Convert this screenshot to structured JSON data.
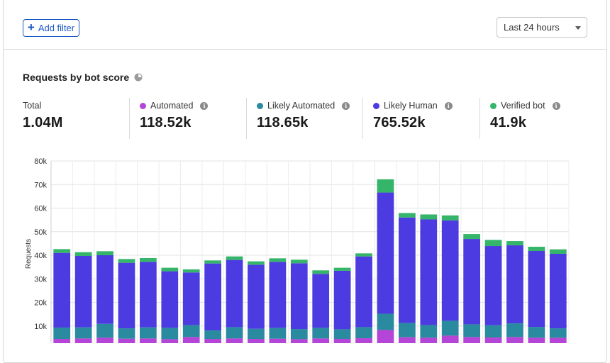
{
  "toolbar": {
    "add_filter_label": "Add filter",
    "time_range": "Last 24 hours"
  },
  "card": {
    "title": "Requests by bot score"
  },
  "stats": [
    {
      "label": "Total",
      "value": "1.04M",
      "color": ""
    },
    {
      "label": "Automated",
      "value": "118.52k",
      "color": "#b545d6"
    },
    {
      "label": "Likely Automated",
      "value": "118.65k",
      "color": "#2a8aa0"
    },
    {
      "label": "Likely Human",
      "value": "765.52k",
      "color": "#4b3be0"
    },
    {
      "label": "Verified bot",
      "value": "41.9k",
      "color": "#35b56a"
    }
  ],
  "chart_data": {
    "type": "bar",
    "stacked": true,
    "ylabel": "Requests",
    "ylim": [
      0,
      80000
    ],
    "yticks": [
      "80k",
      "70k",
      "60k",
      "50k",
      "40k",
      "30k",
      "20k",
      "10k"
    ],
    "grid": true,
    "series": [
      {
        "name": "Automated",
        "color": "#b545d6",
        "values": [
          4500,
          4700,
          5000,
          4600,
          4700,
          4400,
          5300,
          4500,
          4700,
          4500,
          4600,
          4400,
          4700,
          4500,
          4800,
          8300,
          5200,
          5000,
          5900,
          5300,
          5100,
          5300,
          5000,
          5000
        ]
      },
      {
        "name": "Likely Automated",
        "color": "#2a8aa0",
        "values": [
          4800,
          4700,
          5900,
          4400,
          4700,
          4800,
          5100,
          3600,
          4800,
          4300,
          4600,
          4300,
          4500,
          4100,
          4700,
          6900,
          6100,
          5400,
          6300,
          5400,
          5200,
          5800,
          4600,
          4000
        ]
      },
      {
        "name": "Likely Human",
        "color": "#4b3be0",
        "values": [
          31700,
          30300,
          29100,
          27800,
          27800,
          24000,
          22300,
          28400,
          28500,
          27200,
          28000,
          27900,
          22900,
          24800,
          30000,
          51400,
          44700,
          44800,
          42600,
          36200,
          33600,
          33100,
          32200,
          31600
        ]
      },
      {
        "name": "Verified bot",
        "color": "#35b56a",
        "values": [
          1600,
          1600,
          1700,
          1600,
          1600,
          1500,
          1300,
          1300,
          1500,
          1400,
          1500,
          1500,
          1500,
          1300,
          1300,
          5600,
          1900,
          2100,
          2100,
          2100,
          2600,
          1800,
          1800,
          1900
        ]
      }
    ]
  }
}
